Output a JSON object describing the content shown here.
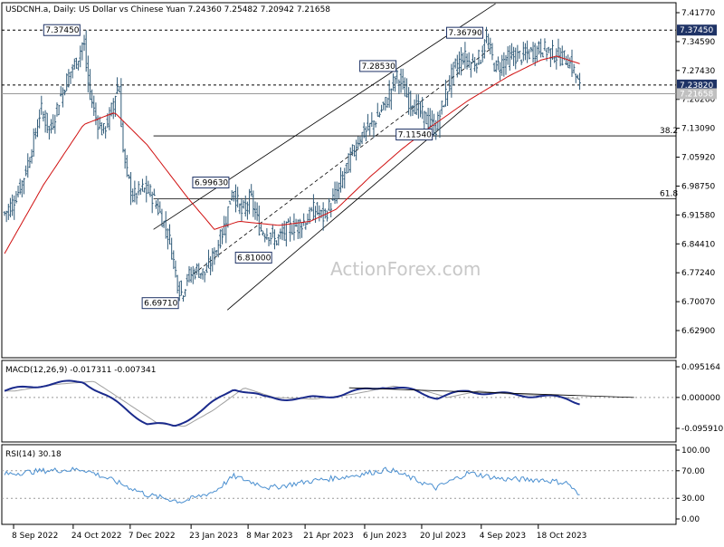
{
  "title": "USDCNH.a, Daily:  US Dollar vs Chinese Yuan  7.24360 7.25482 7.20942 7.21658",
  "watermark": "ActionForex.com",
  "colors": {
    "candle": "#2f5a78",
    "ma": "#d01010",
    "macd": "#1a2a8c",
    "signal": "#a0a0a0",
    "rsi": "#4a8fd0",
    "line": "#000000"
  },
  "price_axis": [
    "7.41770",
    "7.34590",
    "7.27430",
    "7.20260",
    "7.13090",
    "7.05920",
    "6.98750",
    "6.91580",
    "6.84410",
    "6.77240",
    "6.70070",
    "6.62900"
  ],
  "last_price_label": "7.21658",
  "levels": [
    {
      "label": "7.37450",
      "value": 7.3745
    },
    {
      "label": "7.23820",
      "value": 7.2382
    }
  ],
  "fib_levels": [
    {
      "label": "38.2",
      "value": 7.112
    },
    {
      "label": "61.8",
      "value": 6.956
    }
  ],
  "annotations": [
    {
      "text": "7.37450",
      "date": "2022-11-01",
      "value": 7.3745
    },
    {
      "text": "7.36790",
      "date": "2023-09-08",
      "value": 7.3679
    },
    {
      "text": "7.28530",
      "date": "2023-07-03",
      "value": 7.2853
    },
    {
      "text": "7.11540",
      "date": "2023-07-31",
      "value": 7.1154
    },
    {
      "text": "6.99630",
      "date": "2023-02-24",
      "value": 6.9963
    },
    {
      "text": "6.81000",
      "date": "2023-03-29",
      "value": 6.81
    },
    {
      "text": "6.69710",
      "date": "2023-01-16",
      "value": 6.6971
    }
  ],
  "macd": {
    "label": "MACD(12,26,9) -0.017311 -0.007341",
    "axis": [
      "0.095164",
      "0.000000",
      "-0.095910"
    ]
  },
  "rsi": {
    "label": "RSI(14) 30.18",
    "axis": [
      "100.00",
      "70.00",
      "30.00",
      "0.00"
    ]
  },
  "x_ticks": [
    "8 Sep 2022",
    "24 Oct 2022",
    "7 Dec 2022",
    "23 Jan 2023",
    "8 Mar 2023",
    "21 Apr 2023",
    "6 Jun 2023",
    "20 Jul 2023",
    "4 Sep 2023",
    "18 Oct 2023"
  ],
  "chart_data": {
    "type": "line",
    "title": "USDCNH.a, Daily:  US Dollar vs Chinese Yuan  7.24360 7.25482 7.20942 7.21658",
    "xlabel": "",
    "ylabel": "",
    "ylim": [
      6.58,
      7.445
    ],
    "series": [
      {
        "name": "USDCNH close",
        "points": [
          [
            "2022-09-01",
            6.92
          ],
          [
            "2022-09-08",
            6.95
          ],
          [
            "2022-09-15",
            7.0
          ],
          [
            "2022-09-22",
            7.08
          ],
          [
            "2022-09-29",
            7.18
          ],
          [
            "2022-10-06",
            7.12
          ],
          [
            "2022-10-13",
            7.2
          ],
          [
            "2022-10-20",
            7.26
          ],
          [
            "2022-10-27",
            7.3
          ],
          [
            "2022-11-01",
            7.35
          ],
          [
            "2022-11-04",
            7.25
          ],
          [
            "2022-11-10",
            7.16
          ],
          [
            "2022-11-16",
            7.12
          ],
          [
            "2022-11-22",
            7.17
          ],
          [
            "2022-11-28",
            7.25
          ],
          [
            "2022-12-02",
            7.05
          ],
          [
            "2022-12-09",
            6.96
          ],
          [
            "2022-12-16",
            6.98
          ],
          [
            "2022-12-23",
            6.97
          ],
          [
            "2022-12-30",
            6.92
          ],
          [
            "2023-01-06",
            6.86
          ],
          [
            "2023-01-13",
            6.74
          ],
          [
            "2023-01-16",
            6.72
          ],
          [
            "2023-01-20",
            6.76
          ],
          [
            "2023-01-27",
            6.78
          ],
          [
            "2023-02-03",
            6.77
          ],
          [
            "2023-02-10",
            6.82
          ],
          [
            "2023-02-17",
            6.88
          ],
          [
            "2023-02-24",
            6.98
          ],
          [
            "2023-03-03",
            6.92
          ],
          [
            "2023-03-10",
            6.96
          ],
          [
            "2023-03-17",
            6.88
          ],
          [
            "2023-03-24",
            6.87
          ],
          [
            "2023-03-29",
            6.85
          ],
          [
            "2023-04-07",
            6.88
          ],
          [
            "2023-04-14",
            6.89
          ],
          [
            "2023-04-21",
            6.9
          ],
          [
            "2023-04-28",
            6.93
          ],
          [
            "2023-05-05",
            6.91
          ],
          [
            "2023-05-12",
            6.95
          ],
          [
            "2023-05-19",
            7.0
          ],
          [
            "2023-05-26",
            7.06
          ],
          [
            "2023-06-02",
            7.11
          ],
          [
            "2023-06-09",
            7.13
          ],
          [
            "2023-06-16",
            7.16
          ],
          [
            "2023-06-23",
            7.2
          ],
          [
            "2023-06-30",
            7.26
          ],
          [
            "2023-07-03",
            7.25
          ],
          [
            "2023-07-10",
            7.2
          ],
          [
            "2023-07-17",
            7.18
          ],
          [
            "2023-07-24",
            7.15
          ],
          [
            "2023-07-31",
            7.13
          ],
          [
            "2023-08-07",
            7.21
          ],
          [
            "2023-08-14",
            7.28
          ],
          [
            "2023-08-21",
            7.31
          ],
          [
            "2023-08-28",
            7.29
          ],
          [
            "2023-09-04",
            7.31
          ],
          [
            "2023-09-08",
            7.35
          ],
          [
            "2023-09-15",
            7.28
          ],
          [
            "2023-09-22",
            7.3
          ],
          [
            "2023-09-29",
            7.31
          ],
          [
            "2023-10-06",
            7.31
          ],
          [
            "2023-10-13",
            7.32
          ],
          [
            "2023-10-20",
            7.33
          ],
          [
            "2023-10-27",
            7.32
          ],
          [
            "2023-11-03",
            7.31
          ],
          [
            "2023-11-10",
            7.3
          ],
          [
            "2023-11-15",
            7.27
          ],
          [
            "2023-11-20",
            7.22
          ]
        ]
      },
      {
        "name": "Moving average",
        "points": [
          [
            "2022-09-01",
            6.82
          ],
          [
            "2022-10-01",
            6.99
          ],
          [
            "2022-11-01",
            7.14
          ],
          [
            "2022-11-25",
            7.17
          ],
          [
            "2022-12-20",
            7.09
          ],
          [
            "2023-01-20",
            6.96
          ],
          [
            "2023-02-10",
            6.88
          ],
          [
            "2023-03-01",
            6.9
          ],
          [
            "2023-04-01",
            6.89
          ],
          [
            "2023-04-25",
            6.9
          ],
          [
            "2023-05-15",
            6.93
          ],
          [
            "2023-06-10",
            7.01
          ],
          [
            "2023-07-05",
            7.08
          ],
          [
            "2023-07-25",
            7.13
          ],
          [
            "2023-08-25",
            7.2
          ],
          [
            "2023-09-25",
            7.26
          ],
          [
            "2023-10-20",
            7.3
          ],
          [
            "2023-11-01",
            7.31
          ],
          [
            "2023-11-20",
            7.29
          ]
        ]
      },
      {
        "name": "MACD",
        "points": [
          [
            "2022-09-01",
            0.02
          ],
          [
            "2022-10-01",
            0.04
          ],
          [
            "2022-11-01",
            0.05
          ],
          [
            "2022-11-20",
            0.0
          ],
          [
            "2022-12-20",
            -0.08
          ],
          [
            "2023-01-10",
            -0.09
          ],
          [
            "2023-02-01",
            -0.04
          ],
          [
            "2023-02-25",
            0.03
          ],
          [
            "2023-03-20",
            0.0
          ],
          [
            "2023-04-20",
            -0.005
          ],
          [
            "2023-05-20",
            0.01
          ],
          [
            "2023-06-20",
            0.035
          ],
          [
            "2023-07-15",
            0.02
          ],
          [
            "2023-08-01",
            0.0
          ],
          [
            "2023-08-25",
            0.02
          ],
          [
            "2023-09-20",
            0.01
          ],
          [
            "2023-10-20",
            0.005
          ],
          [
            "2023-11-10",
            -0.005
          ],
          [
            "2023-11-20",
            -0.017
          ]
        ]
      },
      {
        "name": "RSI",
        "points": [
          [
            "2022-09-01",
            65
          ],
          [
            "2022-10-01",
            70
          ],
          [
            "2022-11-01",
            72
          ],
          [
            "2022-11-25",
            55
          ],
          [
            "2022-12-20",
            35
          ],
          [
            "2023-01-16",
            25
          ],
          [
            "2023-02-10",
            40
          ],
          [
            "2023-02-25",
            62
          ],
          [
            "2023-03-25",
            45
          ],
          [
            "2023-04-25",
            55
          ],
          [
            "2023-05-25",
            62
          ],
          [
            "2023-06-25",
            72
          ],
          [
            "2023-07-31",
            45
          ],
          [
            "2023-08-25",
            67
          ],
          [
            "2023-09-20",
            58
          ],
          [
            "2023-10-20",
            57
          ],
          [
            "2023-11-10",
            52
          ],
          [
            "2023-11-20",
            30
          ]
        ]
      }
    ]
  }
}
